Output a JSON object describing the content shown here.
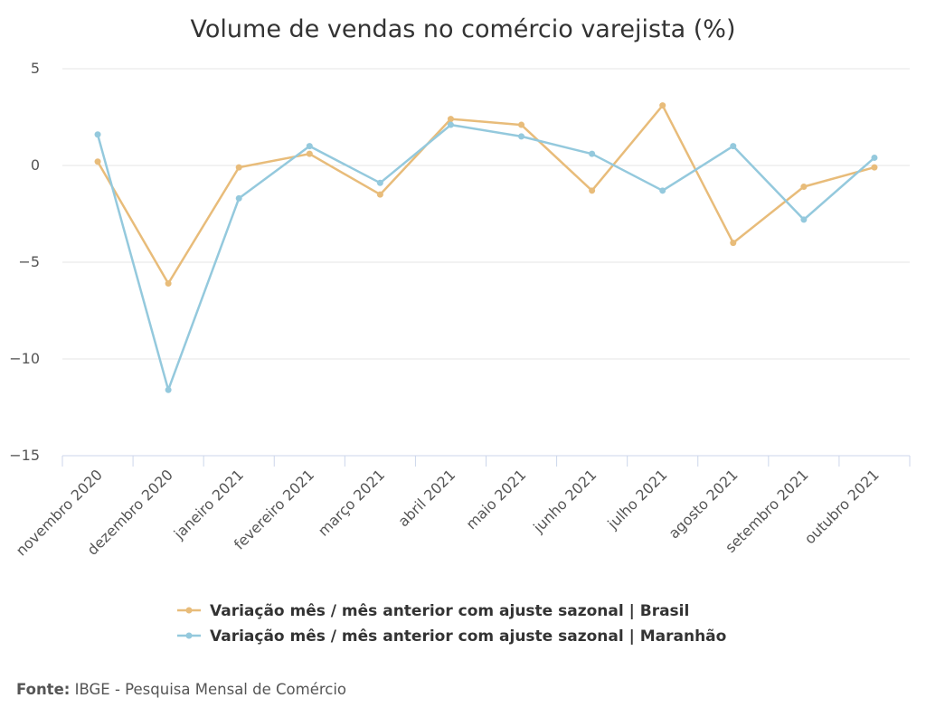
{
  "chart_data": {
    "type": "line",
    "title": "Volume de vendas no comércio varejista (%)",
    "categories": [
      "novembro 2020",
      "dezembro 2020",
      "janeiro 2021",
      "fevereiro 2021",
      "março 2021",
      "abril 2021",
      "maio 2021",
      "junho 2021",
      "julho 2021",
      "agosto 2021",
      "setembro 2021",
      "outubro 2021"
    ],
    "series": [
      {
        "name": "Variação mês / mês anterior com ajuste sazonal | Brasil",
        "color": "#e8bc7a",
        "values": [
          0.2,
          -6.1,
          -0.1,
          0.6,
          -1.5,
          2.4,
          2.1,
          -1.3,
          3.1,
          -4.0,
          -1.1,
          -0.1
        ]
      },
      {
        "name": "Variação mês / mês anterior com ajuste sazonal | Maranhão",
        "color": "#94c9dd",
        "values": [
          1.6,
          -11.6,
          -1.7,
          1.0,
          -0.9,
          2.1,
          1.5,
          0.6,
          -1.3,
          1.0,
          -2.8,
          0.4
        ]
      }
    ],
    "ylim": [
      -15,
      5
    ],
    "yticks": [
      5,
      0,
      -5,
      -10,
      -15
    ],
    "ytick_labels": [
      "5",
      "0",
      "−5",
      "−10",
      "−15"
    ],
    "grid": true,
    "legend_position": "bottom-center",
    "xlabel": "",
    "ylabel": ""
  },
  "source": {
    "prefix": "Fonte:",
    "text": " IBGE - Pesquisa Mensal de Comércio"
  },
  "colors": {
    "grid": "#e6e6e6",
    "axis": "#ccd6eb",
    "text": "#333333"
  }
}
